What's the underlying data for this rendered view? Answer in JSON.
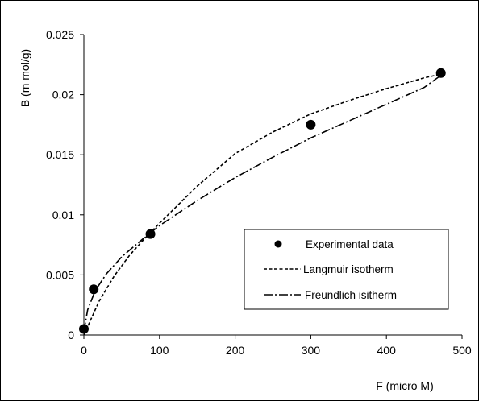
{
  "chart_data": {
    "type": "scatter",
    "title": "",
    "xlabel": "F (micro M)",
    "ylabel": "B (m mol/g)",
    "xlim": [
      0,
      500
    ],
    "ylim": [
      0,
      0.025
    ],
    "x_ticks": [
      "0",
      "100",
      "200",
      "300",
      "400",
      "500"
    ],
    "y_ticks": [
      "0",
      "0.005",
      "0.01",
      "0.015",
      "0.02",
      "0.025"
    ],
    "grid": false,
    "legend_position": "lower-right",
    "series": [
      {
        "name": "Experimental data",
        "type": "scatter",
        "x": [
          0,
          13,
          88,
          300,
          472
        ],
        "y": [
          0.0005,
          0.0038,
          0.0084,
          0.0175,
          0.0218
        ]
      },
      {
        "name": "Langmuir isotherm",
        "type": "line",
        "style": "dashed",
        "x": [
          0,
          20,
          40,
          60,
          80,
          100,
          150,
          200,
          250,
          300,
          350,
          400,
          450,
          472
        ],
        "y": [
          0.0,
          0.0028,
          0.0049,
          0.0066,
          0.008,
          0.0093,
          0.0124,
          0.0151,
          0.0169,
          0.0184,
          0.0195,
          0.0205,
          0.0214,
          0.0217
        ]
      },
      {
        "name": "Freundlich isitherm",
        "type": "line",
        "style": "dash-dot",
        "x": [
          0,
          5,
          15,
          30,
          50,
          80,
          100,
          150,
          200,
          250,
          300,
          350,
          400,
          450,
          472
        ],
        "y": [
          0.0003,
          0.0021,
          0.0037,
          0.0051,
          0.0065,
          0.0081,
          0.0091,
          0.0112,
          0.0131,
          0.0148,
          0.0164,
          0.0178,
          0.0192,
          0.0206,
          0.0216
        ]
      }
    ]
  }
}
